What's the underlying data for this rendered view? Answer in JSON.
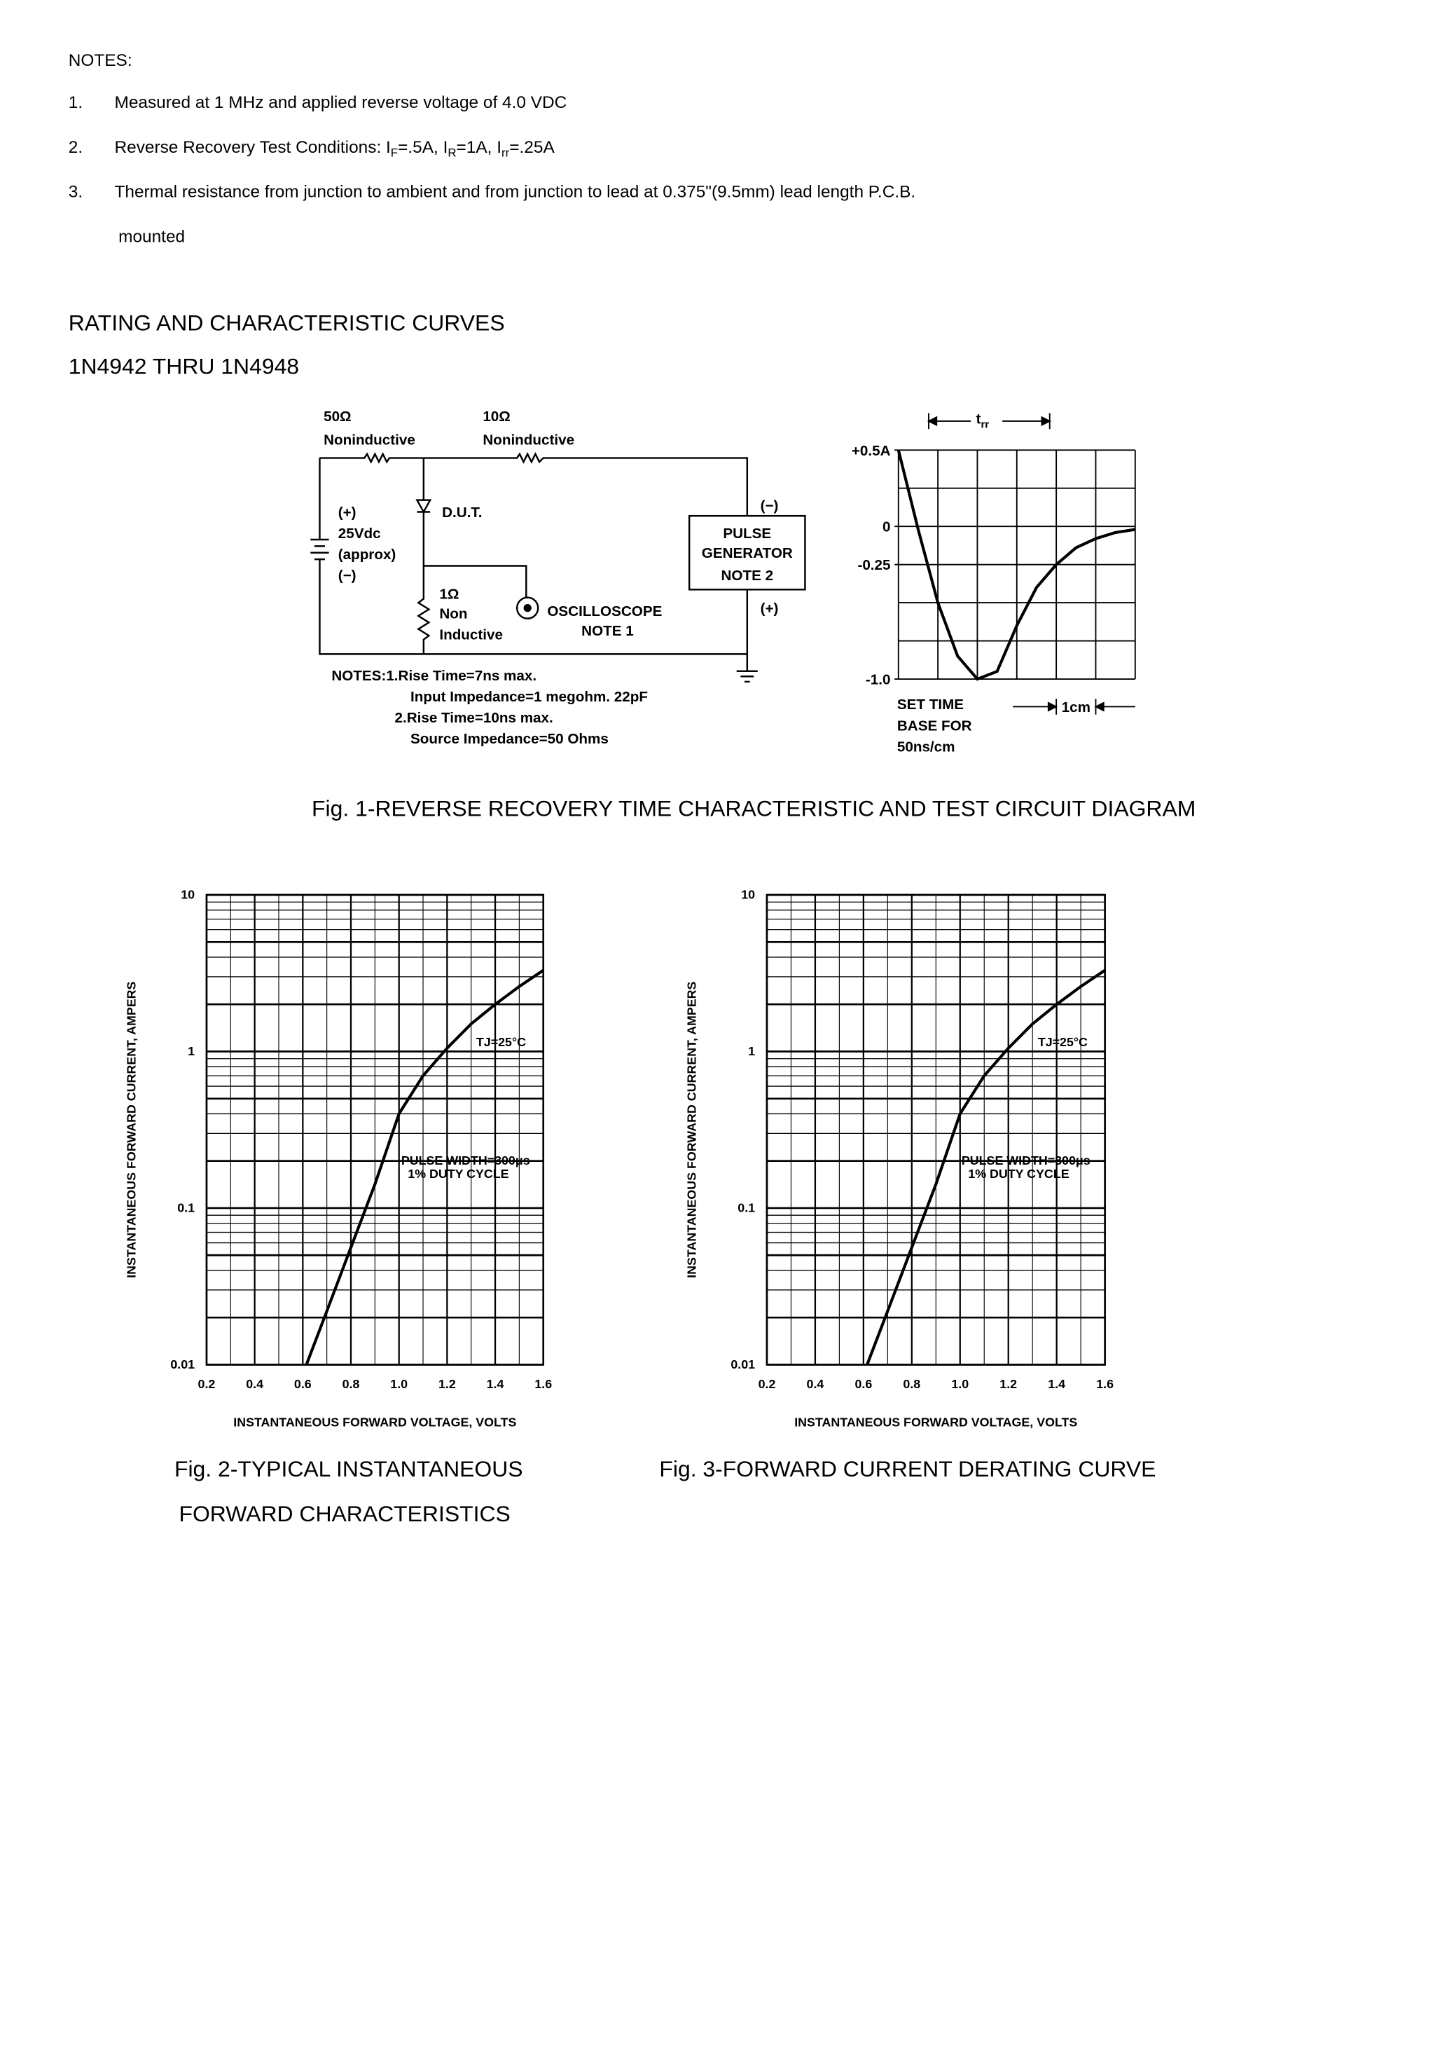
{
  "notes": {
    "heading": "NOTES:",
    "items": [
      {
        "number": "1.",
        "text": "Measured at 1 MHz and applied reverse voltage of 4.0 VDC"
      },
      {
        "number": "2.",
        "parts": [
          {
            "text": "Reverse Recovery Test Conditions: I"
          },
          {
            "sub": "F"
          },
          {
            "text": "=.5A, I"
          },
          {
            "sub": "R"
          },
          {
            "text": "=1A, I"
          },
          {
            "sub": "rr"
          },
          {
            "text": "=.25A"
          }
        ]
      },
      {
        "number": "3.",
        "text": "Thermal resistance from junction to ambient and from junction to lead at 0.375\"(9.5mm) lead length P.C.B.",
        "continuation": "mounted"
      }
    ]
  },
  "section": {
    "title": "RATING AND CHARACTERISTIC CURVES",
    "subtitle": "1N4942 THRU 1N4948"
  },
  "circuit": {
    "labels": [
      "50Ω",
      "Noninductive",
      "10Ω",
      "Noninductive",
      "(+)",
      "25Vdc",
      "(approx)",
      "(−)",
      "D.U.T.",
      "1Ω",
      "Non",
      "Inductive",
      "OSCILLOSCOPE",
      "NOTE 1",
      "(−)",
      "PULSE",
      "GENERATOR",
      "NOTE 2",
      "(+)"
    ],
    "notes": [
      "NOTES:1.Rise Time=7ns max.",
      "Input Impedance=1 megohm. 22pF",
      "2.Rise Time=10ns max.",
      "Source Impedance=50 Ohms"
    ]
  },
  "chart_data": [
    {
      "type": "line",
      "x": [
        0,
        0.5,
        1,
        1.5,
        2,
        2.5,
        3,
        3.5,
        4,
        4.5,
        5,
        5.5,
        6
      ],
      "values": [
        0.5,
        -0.02,
        -0.5,
        -0.85,
        -1.0,
        -0.95,
        -0.65,
        -0.4,
        -0.25,
        -0.14,
        -0.08,
        -0.04,
        -0.02
      ],
      "color": "#000000",
      "xlim": [
        0,
        6
      ],
      "ylim": [
        -1.0,
        0.5
      ],
      "yticks": [
        {
          "value": 0.5,
          "label": "+0.5A"
        },
        0,
        -0.25,
        {
          "value": -1.0,
          "label": "-1.0"
        }
      ],
      "trr": {
        "main": "t",
        "sub": "rr"
      },
      "annotations": [
        "SET TIME",
        "BASE FOR",
        "50ns/cm",
        "1cm"
      ],
      "grid": true
    },
    {
      "type": "line",
      "log_y": true,
      "x": [
        0.615,
        0.7,
        0.8,
        0.9,
        1.0,
        1.1,
        1.2,
        1.3,
        1.4,
        1.5,
        1.6
      ],
      "values": [
        0.01,
        0.022,
        0.056,
        0.142,
        0.4,
        0.7,
        1.05,
        1.5,
        2.0,
        2.6,
        3.3
      ],
      "color": "#000000",
      "xlim": [
        0.2,
        1.6
      ],
      "ylim": [
        0.01,
        10
      ],
      "xticks": [
        0.2,
        0.4,
        0.6,
        0.8,
        {
          "value": 1.0,
          "label": "1.0"
        },
        1.2,
        1.4,
        1.6
      ],
      "yticks": [
        0.01,
        0.1,
        1,
        10
      ],
      "xlabel": "INSTANTANEOUS FORWARD VOLTAGE, VOLTS",
      "ylabel": "INSTANTANEOUS FORWARD CURRENT, AMPERS",
      "annotations": [
        "TJ=25°C",
        "PULSE WIDTH=300μs",
        "1% DUTY CYCLE"
      ],
      "grid": true
    },
    {
      "type": "line",
      "log_y": true,
      "x": [
        0.615,
        0.7,
        0.8,
        0.9,
        1.0,
        1.1,
        1.2,
        1.3,
        1.4,
        1.5,
        1.6
      ],
      "values": [
        0.01,
        0.022,
        0.056,
        0.142,
        0.4,
        0.7,
        1.05,
        1.5,
        2.0,
        2.6,
        3.3
      ],
      "color": "#000000",
      "xlim": [
        0.2,
        1.6
      ],
      "ylim": [
        0.01,
        10
      ],
      "xticks": [
        0.2,
        0.4,
        0.6,
        0.8,
        {
          "value": 1.0,
          "label": "1.0"
        },
        1.2,
        1.4,
        1.6
      ],
      "yticks": [
        0.01,
        0.1,
        1,
        10
      ],
      "xlabel": "INSTANTANEOUS FORWARD VOLTAGE, VOLTS",
      "ylabel": "INSTANTANEOUS FORWARD CURRENT, AMPERS",
      "annotations": [
        "TJ=25°C",
        "PULSE WIDTH=300μs",
        "1% DUTY CYCLE"
      ],
      "grid": true
    }
  ],
  "captions": {
    "fig1": "Fig. 1-REVERSE RECOVERY TIME CHARACTERISTIC AND TEST CIRCUIT DIAGRAM",
    "fig2": [
      "Fig. 2-TYPICAL INSTANTANEOUS",
      "FORWARD CHARACTERISTICS"
    ],
    "fig3": "Fig. 3-FORWARD CURRENT DERATING CURVE"
  }
}
